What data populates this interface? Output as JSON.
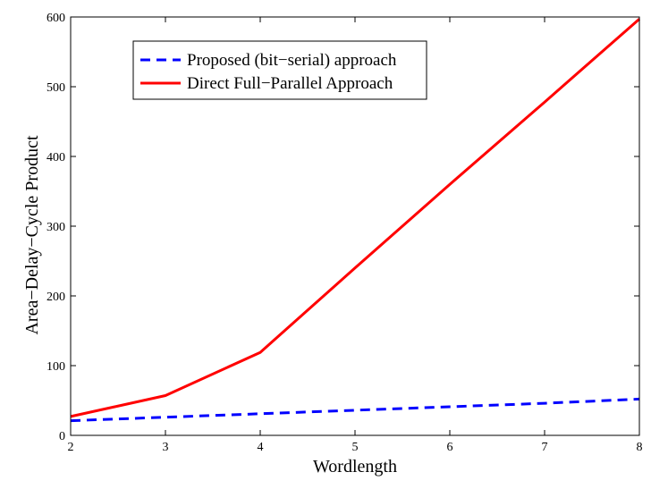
{
  "chart_data": {
    "type": "line",
    "title": "",
    "xlabel": "Wordlength",
    "ylabel": "Area−Delay−Cycle Product",
    "xlim": [
      2,
      8
    ],
    "ylim": [
      0,
      600
    ],
    "x": [
      2,
      3,
      4,
      5,
      6,
      7,
      8
    ],
    "x_ticks": [
      "2",
      "3",
      "4",
      "5",
      "6",
      "7",
      "8"
    ],
    "y_ticks": [
      "0",
      "100",
      "200",
      "300",
      "400",
      "500",
      "600"
    ],
    "grid": false,
    "legend_position": "top-left",
    "series": [
      {
        "name": "Proposed (bit−serial) approach",
        "style": "dashed",
        "color": "#0000ff",
        "values": [
          21,
          26,
          31,
          36,
          41,
          46,
          52
        ]
      },
      {
        "name": "Direct Full−Parallel Approach",
        "style": "solid",
        "color": "#ff0000",
        "values": [
          27,
          57,
          119,
          240,
          360,
          478,
          597
        ]
      }
    ]
  }
}
